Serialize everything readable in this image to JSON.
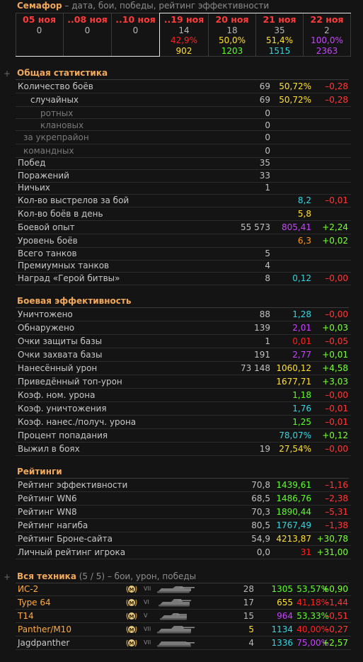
{
  "semafor": {
    "title": "Семафор",
    "subtitle": " – дата, бои, победы, рейтинг эффективности",
    "dates": [
      {
        "date": "05 ноя",
        "battles": "0",
        "win": "",
        "eff": ""
      },
      {
        "date": "..08 ноя",
        "battles": "0",
        "win": "",
        "eff": ""
      },
      {
        "date": "..10 ноя",
        "battles": "0",
        "win": "",
        "eff": ""
      },
      {
        "date": "..19 ноя",
        "battles": "14",
        "win": "42,9%",
        "eff": "902"
      },
      {
        "date": "20 ноя",
        "battles": "18",
        "win": "50,0%",
        "eff": "1203"
      },
      {
        "date": "21 ноя",
        "battles": "35",
        "win": "51,4%",
        "eff": "1515"
      },
      {
        "date": "22 ноя",
        "battles": "2",
        "win": "100,0%",
        "eff": "2363"
      }
    ]
  },
  "general": {
    "title": "Общая статистика",
    "rows": [
      {
        "label": "Количество боёв",
        "value": "69",
        "pct": "50,72%",
        "delta": "–0,28"
      },
      {
        "label": "случайных",
        "value": "69",
        "pct": "50,72%",
        "delta": "–0,28"
      },
      {
        "label": "ротных",
        "value": "0",
        "pct": "",
        "delta": ""
      },
      {
        "label": "клановых",
        "value": "0",
        "pct": "",
        "delta": ""
      },
      {
        "label": "за укрепрайон",
        "value": "0",
        "pct": "",
        "delta": ""
      },
      {
        "label": "командных",
        "value": "0",
        "pct": "",
        "delta": ""
      },
      {
        "label": "Побед",
        "value": "35",
        "pct": "",
        "delta": ""
      },
      {
        "label": "Поражений",
        "value": "33",
        "pct": "",
        "delta": ""
      },
      {
        "label": "Ничьих",
        "value": "1",
        "pct": "",
        "delta": ""
      },
      {
        "label": "Кол-во выстрелов за бой",
        "value": "",
        "pct": "8,2",
        "delta": "–0,01"
      },
      {
        "label": "Кол-во боёв в день",
        "value": "",
        "pct": "5,8",
        "delta": ""
      },
      {
        "label": "Боевой опыт",
        "value": "55 573",
        "pct": "805,41",
        "delta": "+2,24"
      },
      {
        "label": "Уровень боёв",
        "value": "",
        "pct": "6,3",
        "delta": "+0,02"
      },
      {
        "label": "Всего танков",
        "value": "5",
        "pct": "",
        "delta": ""
      },
      {
        "label": "Премиумных танков",
        "value": "4",
        "pct": "",
        "delta": ""
      },
      {
        "label": "Наград «Герой битвы»",
        "value": "8",
        "pct": "0,12",
        "delta": "–0,00"
      }
    ]
  },
  "efficiency": {
    "title": "Боевая эффективность",
    "rows": [
      {
        "label": "Уничтожено",
        "value": "88",
        "pct": "1,28",
        "delta": "–0,00"
      },
      {
        "label": "Обнаружено",
        "value": "139",
        "pct": "2,01",
        "delta": "+0,03"
      },
      {
        "label": "Очки защиты базы",
        "value": "1",
        "pct": "0,01",
        "delta": "–0,05"
      },
      {
        "label": "Очки захвата базы",
        "value": "191",
        "pct": "2,77",
        "delta": "+0,01"
      },
      {
        "label": "Нанесённый урон",
        "value": "73 148",
        "pct": "1060,12",
        "delta": "+4,58"
      },
      {
        "label": "Приведённый топ-урон",
        "value": "",
        "pct": "1677,71",
        "delta": "+3,03"
      },
      {
        "label": "Коэф. ном. урона",
        "value": "",
        "pct": "1,18",
        "delta": "–0,00"
      },
      {
        "label": "Коэф. уничтожения",
        "value": "",
        "pct": "1,76",
        "delta": "–0,01"
      },
      {
        "label": "Коэф. нанес./получ. урона",
        "value": "",
        "pct": "1,25",
        "delta": "–0,01"
      },
      {
        "label": "Процент попадания",
        "value": "",
        "pct": "78,07%",
        "delta": "+0,12"
      },
      {
        "label": "Выжил в боях",
        "value": "19",
        "pct": "27,54%",
        "delta": "–0,00"
      }
    ]
  },
  "ratings": {
    "title": "Рейтинги",
    "rows": [
      {
        "label": "Рейтинг эффективности",
        "value": "70,8",
        "pct": "1439,61",
        "delta": "–1,16"
      },
      {
        "label": "Рейтинг WN6",
        "value": "68,5",
        "pct": "1486,76",
        "delta": "–2,38"
      },
      {
        "label": "Рейтинг WN8",
        "value": "70,3",
        "pct": "1890,44",
        "delta": "–5,31"
      },
      {
        "label": "Рейтинг нагиба",
        "value": "80,5",
        "pct": "1767,49",
        "delta": "–1,38"
      },
      {
        "label": "Рейтинг Броне-сайта",
        "value": "54,9",
        "pct": "4213,87",
        "delta": "+30,78"
      },
      {
        "label": "Личный рейтинг игрока",
        "value": "0,0",
        "pct": "31",
        "delta": "+31,00"
      }
    ]
  },
  "vehicles": {
    "title": "Вся техника",
    "count": " (5 / 5)",
    "subtitle": " – бои, урон, победы",
    "rows": [
      {
        "name": "ИС-2",
        "tier": "VII",
        "battles": "28",
        "damage": "1305",
        "win": "53,57%",
        "delta": "+0,90"
      },
      {
        "name": "Type 64",
        "tier": "VI",
        "battles": "17",
        "damage": "655",
        "win": "41,18%",
        "delta": "–1,44"
      },
      {
        "name": "T14",
        "tier": "V",
        "battles": "15",
        "damage": "964",
        "win": "53,33%",
        "delta": "–0,51"
      },
      {
        "name": "Panther/M10",
        "tier": "VII",
        "battles": "5",
        "damage": "1134",
        "win": "40,00%",
        "delta": "–0,27"
      },
      {
        "name": "Jagdpanther",
        "tier": "VII",
        "battles": "4",
        "damage": "1336",
        "win": "75,00%",
        "delta": "+2,57"
      }
    ]
  },
  "colors": {
    "accent": "#f2a85a",
    "negative": "#ff3838",
    "positive": "#7cff3a"
  }
}
